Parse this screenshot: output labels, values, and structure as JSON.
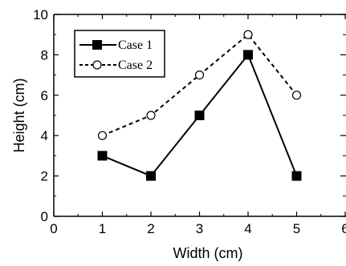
{
  "chart_data": {
    "type": "line",
    "xlabel": "Width (cm)",
    "ylabel": "Height (cm)",
    "xlim": [
      0,
      6
    ],
    "ylim": [
      0,
      10
    ],
    "xticks": [
      "0",
      "1",
      "2",
      "3",
      "4",
      "5",
      "6"
    ],
    "yticks": [
      "0",
      "2",
      "4",
      "6",
      "8",
      "10"
    ],
    "grid": false,
    "legend_position": "top-left",
    "x": [
      1,
      2,
      3,
      4,
      5
    ],
    "series": [
      {
        "name": "Case 1",
        "values": [
          3,
          2,
          5,
          8,
          2
        ],
        "marker": "filled-square",
        "line": "solid",
        "color": "#000000"
      },
      {
        "name": "Case 2",
        "values": [
          4,
          5,
          7,
          9,
          6
        ],
        "marker": "open-circle",
        "line": "dashed",
        "color": "#000000"
      }
    ]
  }
}
